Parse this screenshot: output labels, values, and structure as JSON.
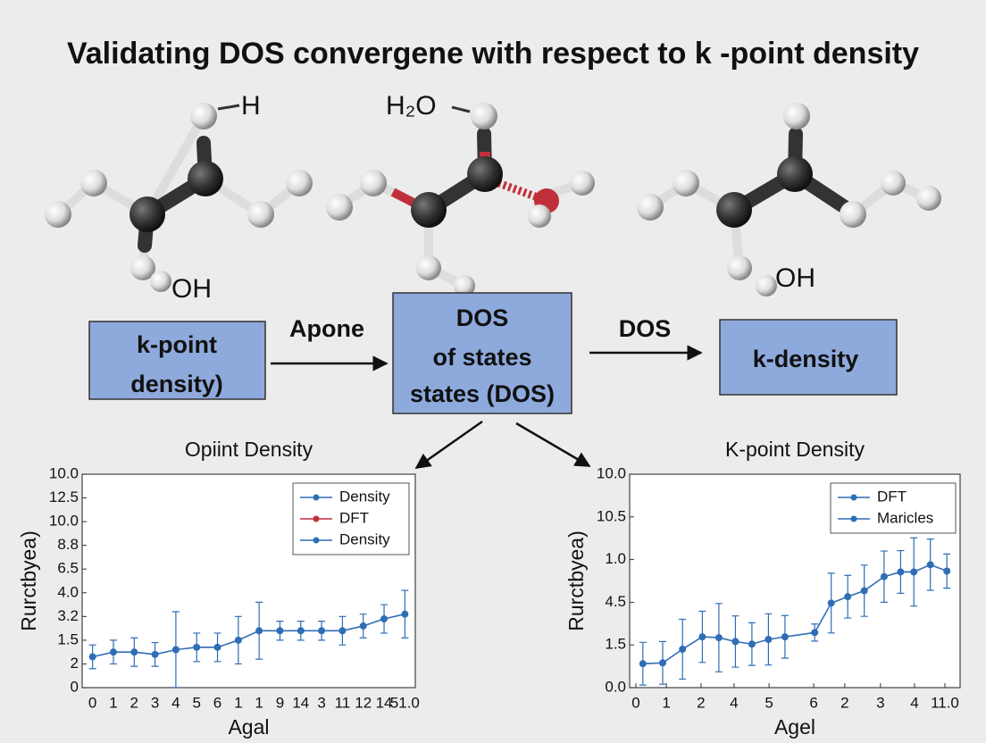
{
  "title": "Validating DOS convergene with respect to k -point density",
  "molecules": [
    {
      "label": "H"
    },
    {
      "label": "OH"
    },
    {
      "label": "H₂O"
    },
    {
      "label": "OH"
    }
  ],
  "boxes": [
    {
      "lines": [
        "k-point",
        "density)"
      ]
    },
    {
      "lines": [
        "DOS",
        "of states",
        "states (DOS)"
      ]
    },
    {
      "lines": [
        "k-density"
      ]
    }
  ],
  "arrow_labels": [
    "Apone",
    "DOS"
  ],
  "chart_data": [
    {
      "type": "line",
      "title": "Opiint Density",
      "xlabel": "Agal",
      "ylabel": "Rurctbyea)",
      "categories": [
        "0",
        "1",
        "2",
        "3",
        "4",
        "5",
        "6",
        "1",
        "1",
        "9",
        "14",
        "3",
        "11",
        "12",
        "14",
        "51.0"
      ],
      "ylim": [
        0,
        9
      ],
      "yticks": [
        0,
        {
          "value": 1,
          "label": "2"
        },
        {
          "value": 2,
          "label": "1.5"
        },
        {
          "value": 3,
          "label": "3.2"
        },
        {
          "value": 4,
          "label": "4.0"
        },
        {
          "value": 5,
          "label": "6.5"
        },
        {
          "value": 6,
          "label": "8.8"
        },
        {
          "value": 7,
          "label": "10.0"
        },
        {
          "value": 8,
          "label": "12.5"
        },
        {
          "value": 9,
          "label": "10.0"
        }
      ],
      "series": [
        {
          "name": "Density",
          "color": "#2f6db5",
          "values": [
            1.3,
            1.5,
            1.5,
            1.4,
            1.6,
            1.7,
            1.7,
            2.0,
            2.4,
            2.4,
            2.4,
            2.4,
            2.4,
            2.6,
            2.9,
            3.1
          ],
          "errors": [
            0.5,
            0.5,
            0.6,
            0.5,
            1.6,
            0.6,
            0.6,
            1.0,
            1.2,
            0.4,
            0.4,
            0.4,
            0.6,
            0.5,
            0.6,
            1.0
          ]
        }
      ],
      "legend": [
        {
          "name": "Density",
          "color": "#2f6db5"
        },
        {
          "name": "DFT",
          "color": "#c0303a"
        },
        {
          "name": "Density",
          "color": "#2f6db5"
        }
      ]
    },
    {
      "type": "line",
      "title": "K-point Density",
      "xlabel": "Agel",
      "ylabel": "Rurctbyea)",
      "xlim": [
        0,
        10
      ],
      "xticks": [
        {
          "value": 0.19,
          "label": "0"
        },
        {
          "value": 1.11,
          "label": "1"
        },
        {
          "value": 2.16,
          "label": "2"
        },
        {
          "value": 3.16,
          "label": "4"
        },
        {
          "value": 4.22,
          "label": "5"
        },
        {
          "value": 5.57,
          "label": "6"
        },
        {
          "value": 6.51,
          "label": "2"
        },
        {
          "value": 7.59,
          "label": "3"
        },
        {
          "value": 8.62,
          "label": "4"
        },
        {
          "value": 9.54,
          "label": "11.0"
        }
      ],
      "ylim": [
        0,
        5
      ],
      "yticks": [
        {
          "value": 0,
          "label": "0.0"
        },
        {
          "value": 1,
          "label": "1.5"
        },
        {
          "value": 2,
          "label": "4.5"
        },
        {
          "value": 3,
          "label": "1.0"
        },
        {
          "value": 4,
          "label": "10.5"
        },
        {
          "value": 5,
          "label": "10.0"
        }
      ],
      "x": [
        0.4,
        1.0,
        1.6,
        2.2,
        2.7,
        3.2,
        3.7,
        4.2,
        4.7,
        5.6,
        6.1,
        6.6,
        7.1,
        7.7,
        8.2,
        8.6,
        9.1,
        9.6
      ],
      "series": [
        {
          "name": "DFT",
          "color": "#2f6db5",
          "values": [
            0.56,
            0.58,
            0.9,
            1.19,
            1.17,
            1.08,
            1.02,
            1.13,
            1.19,
            1.29,
            1.98,
            2.13,
            2.27,
            2.6,
            2.71,
            2.71,
            2.88,
            2.73
          ],
          "errors": [
            0.5,
            0.5,
            0.7,
            0.6,
            0.8,
            0.6,
            0.5,
            0.6,
            0.5,
            0.2,
            0.7,
            0.5,
            0.6,
            0.6,
            0.5,
            0.8,
            0.6,
            0.4
          ]
        }
      ],
      "legend": [
        {
          "name": "DFT",
          "color": "#2f6db5"
        },
        {
          "name": "Maricles",
          "color": "#2f6db5"
        }
      ]
    }
  ]
}
